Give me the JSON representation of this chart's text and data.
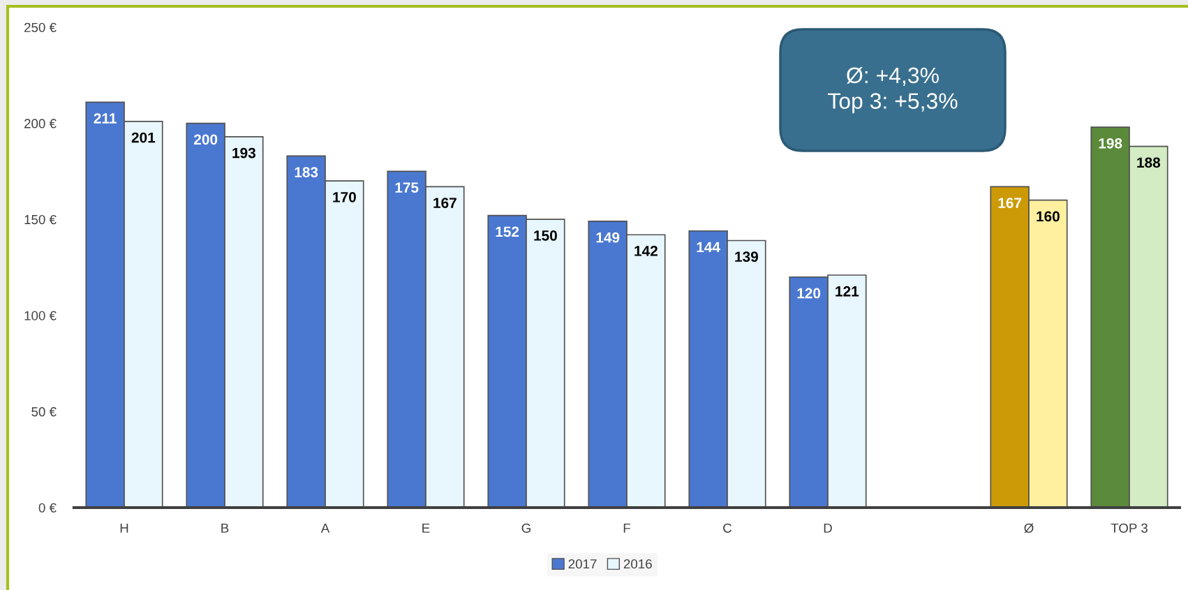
{
  "chart_data": {
    "type": "bar",
    "categories": [
      "H",
      "B",
      "A",
      "E",
      "G",
      "F",
      "C",
      "D",
      null,
      "Ø",
      "TOP 3"
    ],
    "series": [
      {
        "name": "2017",
        "colors": [
          "#4a78d0",
          "#4a78d0",
          "#4a78d0",
          "#4a78d0",
          "#4a78d0",
          "#4a78d0",
          "#4a78d0",
          "#4a78d0",
          null,
          "#cc9a06",
          "#5a8a3a"
        ],
        "values": [
          211,
          200,
          183,
          175,
          152,
          149,
          144,
          120,
          null,
          167,
          198
        ]
      },
      {
        "name": "2016",
        "colors": [
          "#e8f6fd",
          "#e8f6fd",
          "#e8f6fd",
          "#e8f6fd",
          "#e8f6fd",
          "#e8f6fd",
          "#e8f6fd",
          "#e8f6fd",
          null,
          "#fff0a0",
          "#d3ecc3"
        ],
        "values": [
          201,
          193,
          170,
          167,
          150,
          142,
          139,
          121,
          null,
          160,
          188
        ]
      }
    ],
    "ylim": [
      0,
      250
    ],
    "yticks": [
      {
        "value": 0,
        "label": "0 €"
      },
      {
        "value": 50,
        "label": "50 €"
      },
      {
        "value": 100,
        "label": "100 €"
      },
      {
        "value": 150,
        "label": "150 €"
      },
      {
        "value": 200,
        "label": "200 €"
      },
      {
        "value": 250,
        "label": "250 €"
      }
    ],
    "data_labels": true,
    "legend": "bottom",
    "annotations": [
      "Ø: +4,3%\nTop 3: +5,3%"
    ]
  }
}
